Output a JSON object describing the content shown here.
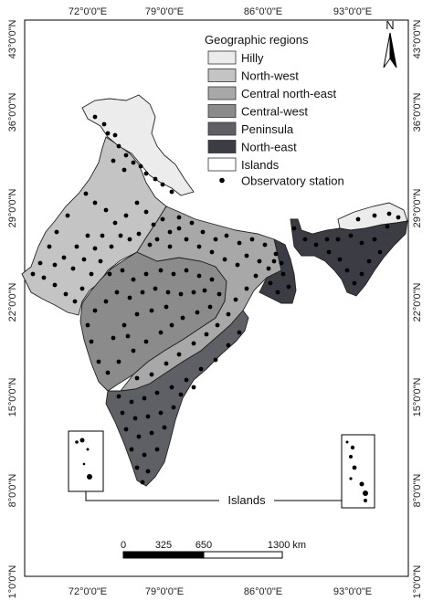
{
  "axes": {
    "x_ticks": [
      "72°0'0\"E",
      "79°0'0\"E",
      "86°0'0\"E",
      "93°0'0\"E"
    ],
    "y_ticks": [
      "43°0'0\"N",
      "36°0'0\"N",
      "29°0'0\"N",
      "22°0'0\"N",
      "15°0'0\"N",
      "8°0'0\"N",
      "1°0'0\"N"
    ]
  },
  "legend": {
    "title": "Geographic regions",
    "items": [
      {
        "label": "Hilly",
        "color": "#ececec"
      },
      {
        "label": "North-west",
        "color": "#c4c4c4"
      },
      {
        "label": "Central north-east",
        "color": "#a8a8a8"
      },
      {
        "label": "Central-west",
        "color": "#8b8b8b"
      },
      {
        "label": "Peninsula",
        "color": "#5f5f66"
      },
      {
        "label": "North-east",
        "color": "#3c3c44"
      },
      {
        "label": "Islands",
        "color": "#ffffff"
      }
    ],
    "station_label": "Observatory station"
  },
  "north_arrow": {
    "label": "N"
  },
  "islands_label": "Islands",
  "scale_bar": {
    "labels": [
      "0",
      "325",
      "650",
      "1300 km"
    ]
  }
}
